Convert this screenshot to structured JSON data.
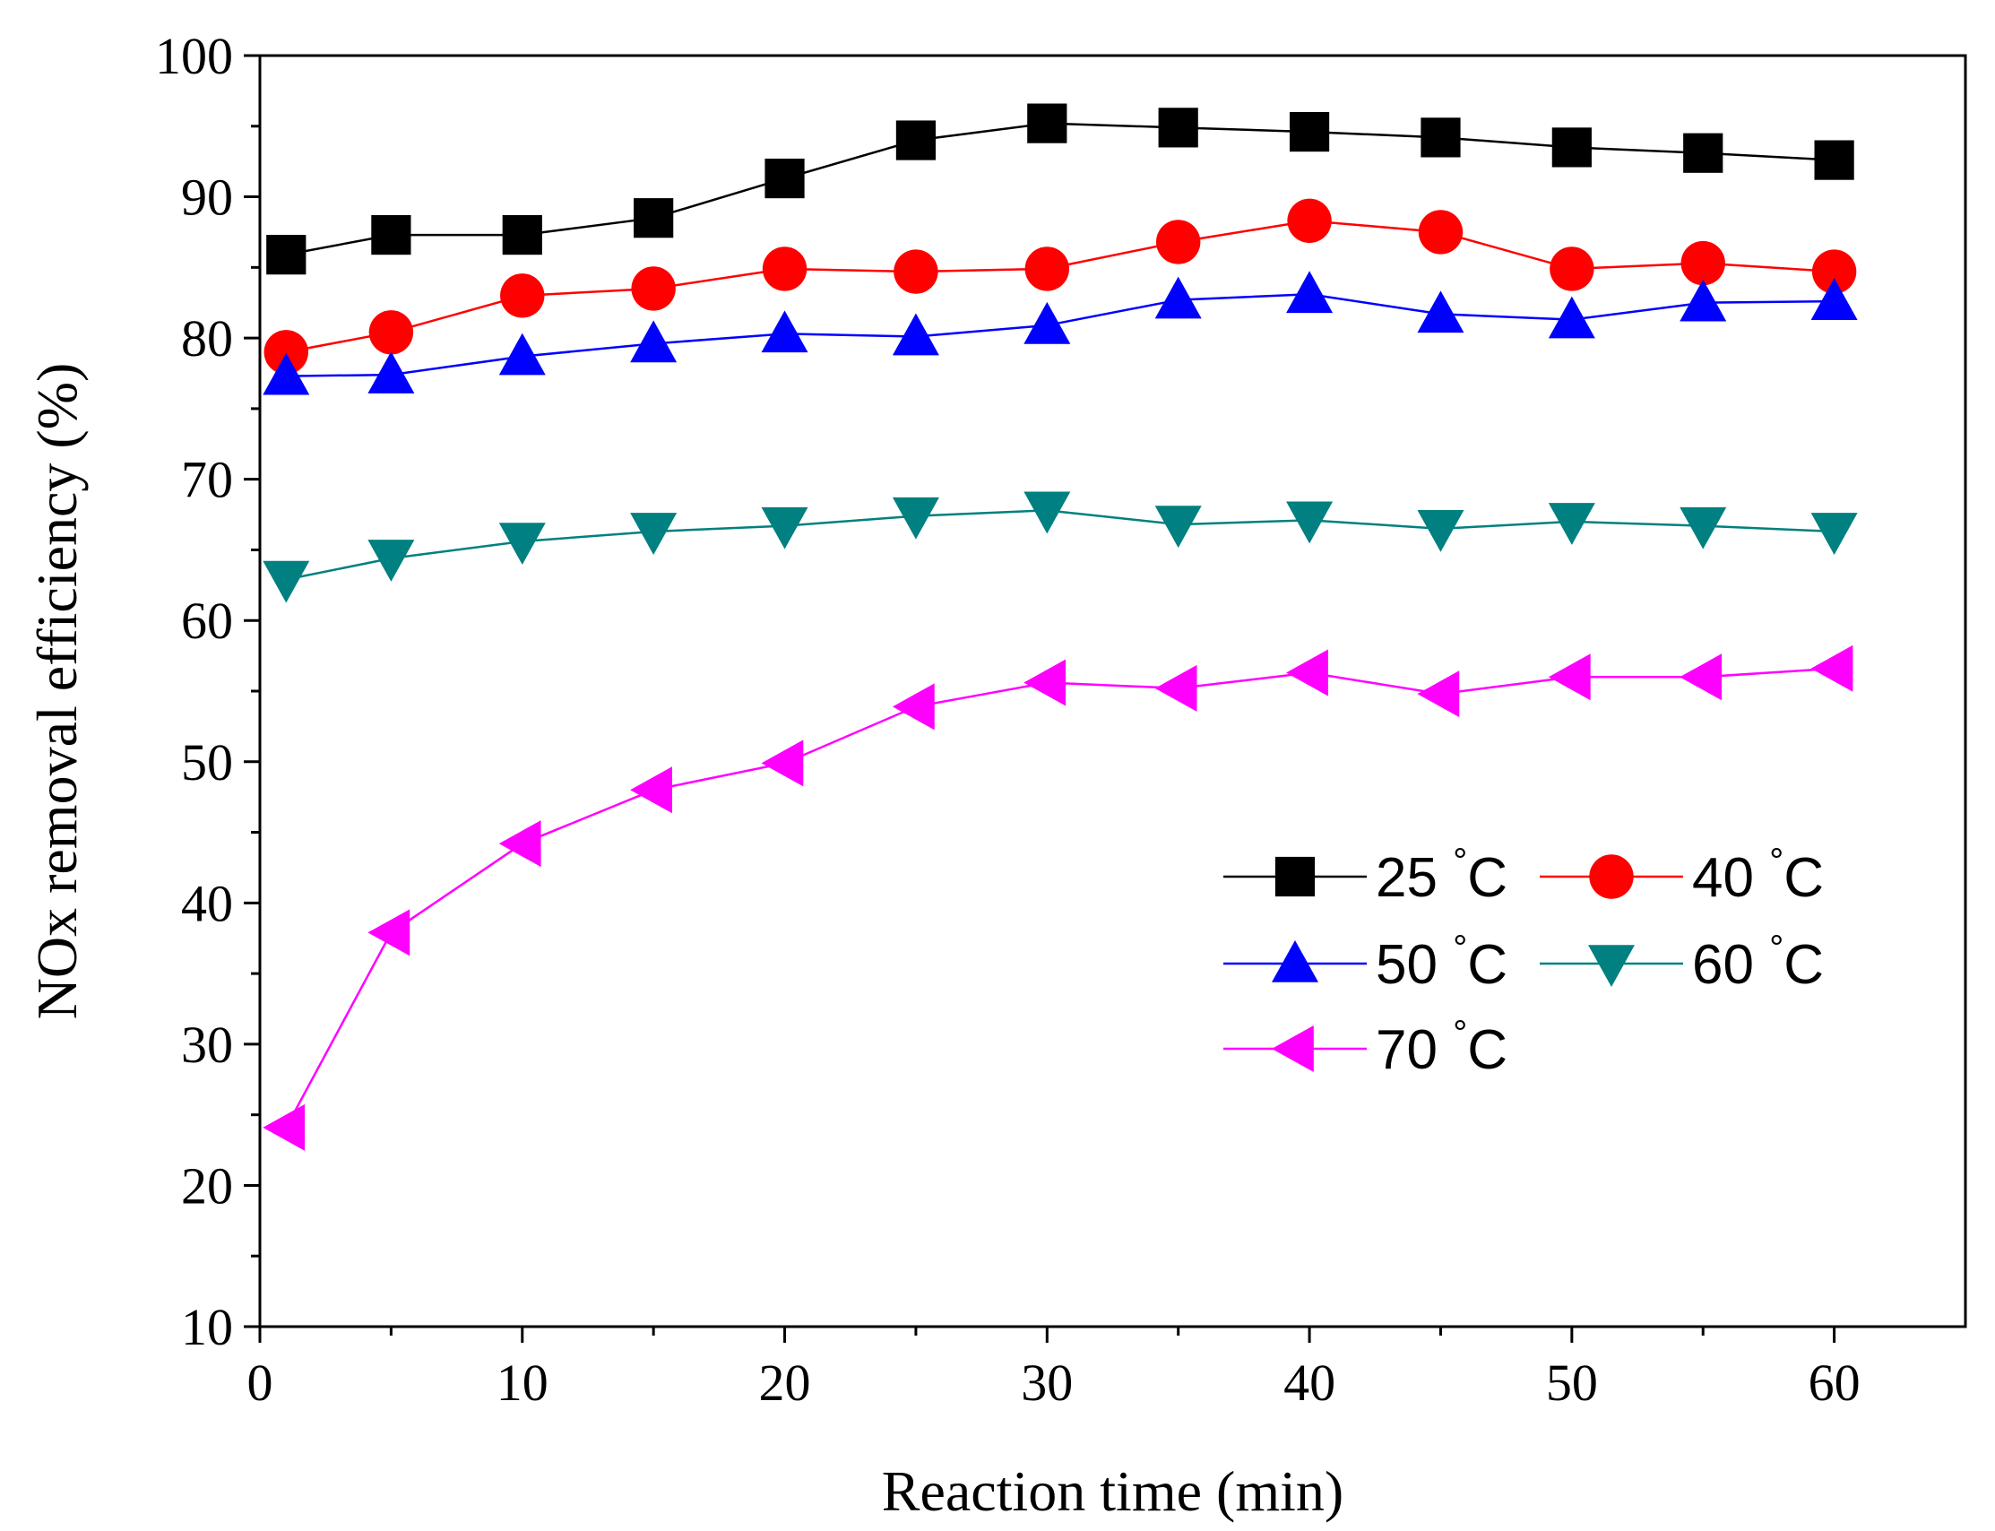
{
  "chart_data": {
    "type": "line",
    "title": "",
    "xlabel": "Reaction time (min)",
    "ylabel": "NOx removal efficiency (%)",
    "xlim": [
      0,
      65
    ],
    "ylim": [
      10,
      100
    ],
    "xticks": [
      0,
      10,
      20,
      30,
      40,
      50,
      60
    ],
    "yticks": [
      10,
      20,
      30,
      40,
      50,
      60,
      70,
      80,
      90,
      100
    ],
    "grid": false,
    "legend_position": "center-right",
    "x": [
      1,
      5,
      10,
      15,
      20,
      25,
      30,
      35,
      40,
      45,
      50,
      55,
      60
    ],
    "series": [
      {
        "name": "25",
        "unit": "°C",
        "color": "#000000",
        "marker": "square",
        "values": [
          85.9,
          87.3,
          87.3,
          88.5,
          91.3,
          94.0,
          95.2,
          94.9,
          94.6,
          94.2,
          93.5,
          93.1,
          92.6
        ]
      },
      {
        "name": "40",
        "unit": "°C",
        "color": "#ff0000",
        "marker": "circle",
        "values": [
          79.0,
          80.4,
          83.0,
          83.5,
          84.9,
          84.7,
          84.9,
          86.8,
          88.3,
          87.5,
          84.9,
          85.3,
          84.7
        ]
      },
      {
        "name": "50",
        "unit": "°C",
        "color": "#0000ff",
        "marker": "triangle-up",
        "values": [
          77.3,
          77.4,
          78.7,
          79.6,
          80.3,
          80.1,
          80.9,
          82.7,
          83.1,
          81.7,
          81.3,
          82.5,
          82.6
        ]
      },
      {
        "name": "60",
        "unit": "°C",
        "color": "#008080",
        "marker": "triangle-down",
        "values": [
          62.9,
          64.4,
          65.6,
          66.3,
          66.7,
          67.4,
          67.8,
          66.8,
          67.1,
          66.5,
          67.0,
          66.7,
          66.3
        ]
      },
      {
        "name": "70",
        "unit": "°C",
        "color": "#ff00ff",
        "marker": "triangle-left",
        "values": [
          24.1,
          37.9,
          44.2,
          48.0,
          49.9,
          53.9,
          55.6,
          55.2,
          56.3,
          54.8,
          56.0,
          56.0,
          56.6
        ]
      }
    ]
  }
}
